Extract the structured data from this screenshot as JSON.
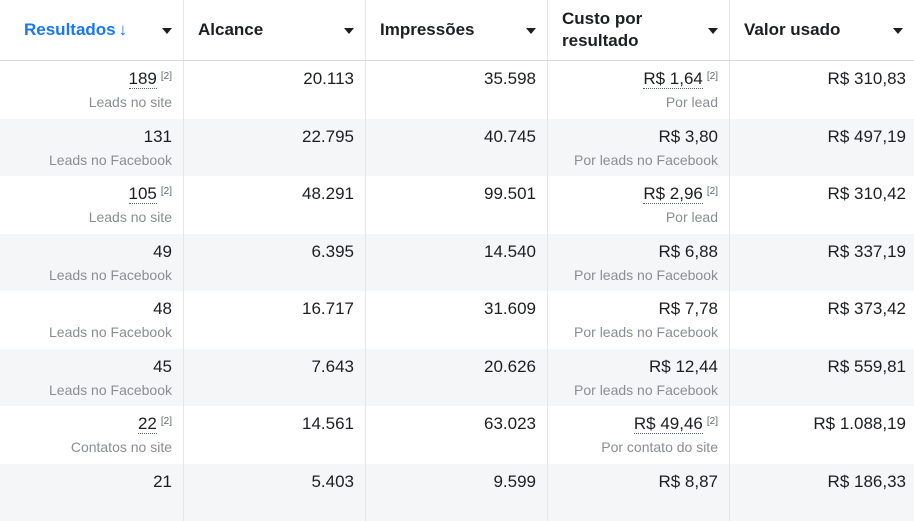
{
  "columns": [
    {
      "label": "Resultados",
      "sorted": true
    },
    {
      "label": "Alcance"
    },
    {
      "label": "Impressões"
    },
    {
      "label": "Custo por resultado"
    },
    {
      "label": "Valor usado"
    }
  ],
  "sort_arrow": "↓",
  "rows": [
    {
      "results": "189",
      "results_ref": "[2]",
      "results_sub": "Leads no site",
      "reach": "20.113",
      "impressions": "35.598",
      "cost": "R$ 1,64",
      "cost_ref": "[2]",
      "cost_sub": "Por lead",
      "spent": "R$ 310,83"
    },
    {
      "results": "131",
      "results_ref": "",
      "results_sub": "Leads no Facebook",
      "reach": "22.795",
      "impressions": "40.745",
      "cost": "R$ 3,80",
      "cost_ref": "",
      "cost_sub": "Por leads no Facebook",
      "spent": "R$ 497,19"
    },
    {
      "results": "105",
      "results_ref": "[2]",
      "results_sub": "Leads no site",
      "reach": "48.291",
      "impressions": "99.501",
      "cost": "R$ 2,96",
      "cost_ref": "[2]",
      "cost_sub": "Por lead",
      "spent": "R$ 310,42"
    },
    {
      "results": "49",
      "results_ref": "",
      "results_sub": "Leads no Facebook",
      "reach": "6.395",
      "impressions": "14.540",
      "cost": "R$ 6,88",
      "cost_ref": "",
      "cost_sub": "Por leads no Facebook",
      "spent": "R$ 337,19"
    },
    {
      "results": "48",
      "results_ref": "",
      "results_sub": "Leads no Facebook",
      "reach": "16.717",
      "impressions": "31.609",
      "cost": "R$ 7,78",
      "cost_ref": "",
      "cost_sub": "Por leads no Facebook",
      "spent": "R$ 373,42"
    },
    {
      "results": "45",
      "results_ref": "",
      "results_sub": "Leads no Facebook",
      "reach": "7.643",
      "impressions": "20.626",
      "cost": "R$ 12,44",
      "cost_ref": "",
      "cost_sub": "Por leads no Facebook",
      "spent": "R$ 559,81"
    },
    {
      "results": "22",
      "results_ref": "[2]",
      "results_sub": "Contatos no site",
      "reach": "14.561",
      "impressions": "63.023",
      "cost": "R$ 49,46",
      "cost_ref": "[2]",
      "cost_sub": "Por contato do site",
      "spent": "R$ 1.088,19"
    },
    {
      "results": "21",
      "results_ref": "",
      "results_sub": "",
      "reach": "5.403",
      "impressions": "9.599",
      "cost": "R$ 8,87",
      "cost_ref": "",
      "cost_sub": "",
      "spent": "R$ 186,33"
    }
  ]
}
